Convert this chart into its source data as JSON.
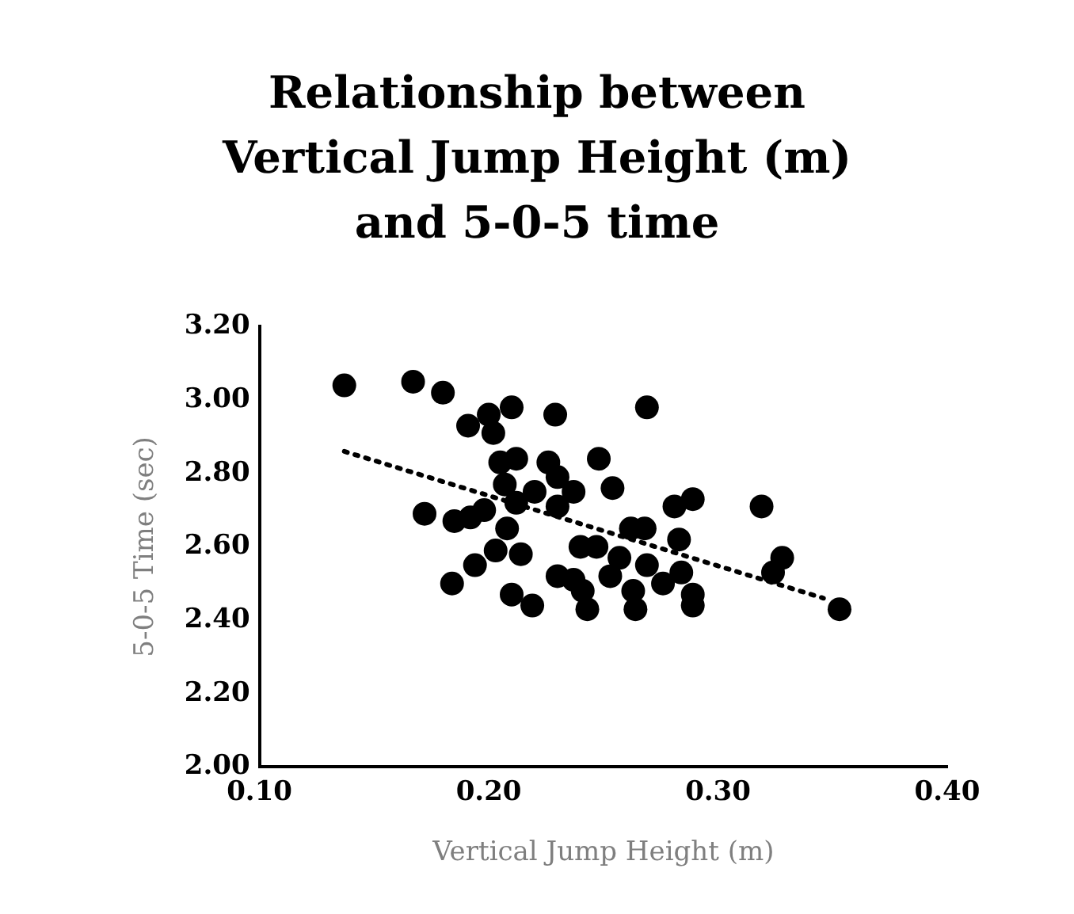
{
  "chart_data": {
    "type": "scatter",
    "title": "Relationship between Vertical Jump Height (m) and 5-0-5 time",
    "xlabel": "Vertical Jump Height (m)",
    "ylabel": "5-0-5 Time (sec)",
    "xlim": [
      0.1,
      0.4
    ],
    "xticks": [
      {
        "value": 0.1,
        "label": "0.10"
      },
      {
        "value": 0.2,
        "label": "0.20"
      },
      {
        "value": 0.3,
        "label": "0.30"
      },
      {
        "value": 0.4,
        "label": "0.40"
      }
    ],
    "ylim": [
      2.0,
      3.2
    ],
    "yticks": [
      {
        "value": 2.0,
        "label": "2.00"
      },
      {
        "value": 2.2,
        "label": "2.20"
      },
      {
        "value": 2.4,
        "label": "2.40"
      },
      {
        "value": 2.6,
        "label": "2.60"
      },
      {
        "value": 2.8,
        "label": "2.80"
      },
      {
        "value": 3.0,
        "label": "3.00"
      },
      {
        "value": 3.2,
        "label": "3.20"
      }
    ],
    "grid": false,
    "legend": false,
    "marker": "circle",
    "series": [
      {
        "type": "scatter",
        "color": "#000000",
        "x": [
          0.137,
          0.167,
          0.18,
          0.191,
          0.2,
          0.202,
          0.21,
          0.229,
          0.205,
          0.212,
          0.226,
          0.248,
          0.207,
          0.22,
          0.23,
          0.237,
          0.23,
          0.212,
          0.172,
          0.185,
          0.192,
          0.198,
          0.208,
          0.214,
          0.203,
          0.194,
          0.184,
          0.21,
          0.219,
          0.23,
          0.237,
          0.241,
          0.243,
          0.24,
          0.254,
          0.269,
          0.281,
          0.289,
          0.319,
          0.262,
          0.268,
          0.283,
          0.247,
          0.257,
          0.269,
          0.253,
          0.276,
          0.284,
          0.263,
          0.289,
          0.289,
          0.264,
          0.324,
          0.328,
          0.353
        ],
        "values": [
          3.04,
          3.05,
          3.02,
          2.93,
          2.96,
          2.91,
          2.98,
          2.96,
          2.83,
          2.84,
          2.83,
          2.84,
          2.77,
          2.75,
          2.79,
          2.75,
          2.71,
          2.72,
          2.69,
          2.67,
          2.68,
          2.7,
          2.65,
          2.58,
          2.59,
          2.55,
          2.5,
          2.47,
          2.44,
          2.52,
          2.51,
          2.48,
          2.43,
          2.6,
          2.76,
          2.98,
          2.71,
          2.73,
          2.71,
          2.65,
          2.65,
          2.62,
          2.6,
          2.57,
          2.55,
          2.52,
          2.5,
          2.53,
          2.48,
          2.47,
          2.44,
          2.43,
          2.53,
          2.57,
          2.43
        ]
      },
      {
        "type": "line",
        "color": "#000000",
        "line_style": "dotted",
        "marker": "none",
        "x": [
          0.137,
          0.346
        ],
        "values": [
          2.86,
          2.46
        ]
      }
    ]
  }
}
